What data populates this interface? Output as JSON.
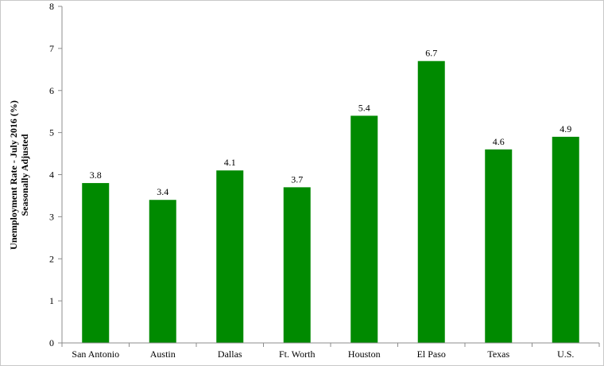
{
  "chart_data": {
    "type": "bar",
    "categories": [
      "San Antonio",
      "Austin",
      "Dallas",
      "Ft. Worth",
      "Houston",
      "El Paso",
      "Texas",
      "U.S."
    ],
    "values": [
      3.8,
      3.4,
      4.1,
      3.7,
      5.4,
      6.7,
      4.6,
      4.9
    ],
    "data_labels": [
      "3.8",
      "3.4",
      "4.1",
      "3.7",
      "5.4",
      "6.7",
      "4.6",
      "4.9"
    ],
    "ylabel_line1": "Unemployment Rate - July 2016 (%)",
    "ylabel_line2": "Seasonally Adjusted",
    "ylim": [
      0,
      8
    ],
    "yticks": [
      0,
      1,
      2,
      3,
      4,
      5,
      6,
      7,
      8
    ],
    "grid": false,
    "bar_color": "#008a00"
  }
}
